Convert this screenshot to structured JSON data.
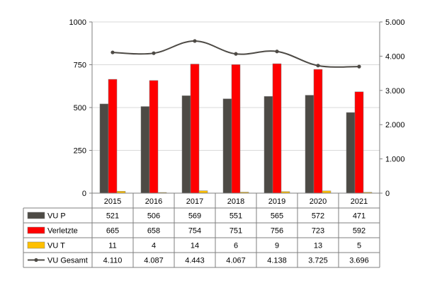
{
  "chart_data": {
    "type": "bar",
    "categories": [
      "2015",
      "2016",
      "2017",
      "2018",
      "2019",
      "2020",
      "2021"
    ],
    "series": [
      {
        "name": "VU P",
        "kind": "bar",
        "axis": "left",
        "color": "#4d4a45",
        "values": [
          521,
          506,
          569,
          551,
          565,
          572,
          471
        ],
        "labels": [
          "521",
          "506",
          "569",
          "551",
          "565",
          "572",
          "471"
        ]
      },
      {
        "name": "Verletzte",
        "kind": "bar",
        "axis": "left",
        "color": "#ff0000",
        "values": [
          665,
          658,
          754,
          751,
          756,
          723,
          592
        ],
        "labels": [
          "665",
          "658",
          "754",
          "751",
          "756",
          "723",
          "592"
        ]
      },
      {
        "name": "VU T",
        "kind": "bar",
        "axis": "left",
        "color": "#ffc000",
        "values": [
          11,
          4,
          14,
          6,
          9,
          13,
          5
        ],
        "labels": [
          "11",
          "4",
          "14",
          "6",
          "9",
          "13",
          "5"
        ]
      },
      {
        "name": "VU Gesamt",
        "kind": "line",
        "axis": "right",
        "color": "#4d4a45",
        "values": [
          4110,
          4087,
          4443,
          4067,
          4138,
          3725,
          3696
        ],
        "labels": [
          "4.110",
          "4.087",
          "4.443",
          "4.067",
          "4.138",
          "3.725",
          "3.696"
        ]
      }
    ],
    "ylim_left": [
      0,
      1000
    ],
    "yticks_left": [
      0,
      250,
      500,
      750,
      1000
    ],
    "yticklabels_left": [
      "0",
      "250",
      "500",
      "750",
      "1000"
    ],
    "ylim_right": [
      0,
      5000
    ],
    "yticks_right": [
      0,
      1000,
      2000,
      3000,
      4000,
      5000
    ],
    "yticklabels_right": [
      "0",
      "1.000",
      "2.000",
      "3.000",
      "4.000",
      "5.000"
    ],
    "grid": "horizontal",
    "legend": "data-table",
    "line_smoothed": true
  }
}
